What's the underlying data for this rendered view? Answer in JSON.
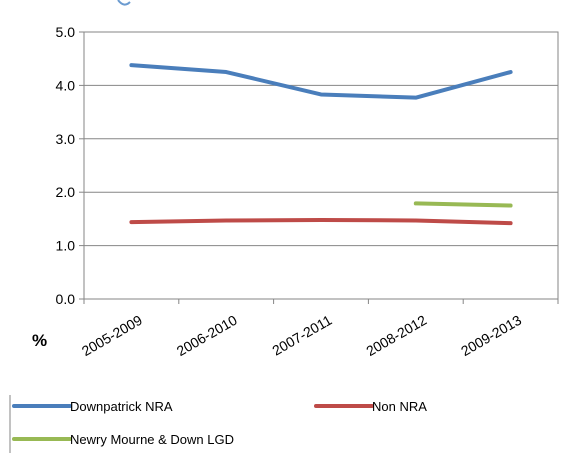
{
  "chart_data": {
    "type": "line",
    "categories": [
      "2005-2009",
      "2006-2010",
      "2007-2011",
      "2008-2012",
      "2009-2013"
    ],
    "y_unit_label": "%",
    "ylim": [
      0,
      5
    ],
    "y_ticks": [
      "0.0",
      "1.0",
      "2.0",
      "3.0",
      "4.0",
      "5.0"
    ],
    "grid": "horizontal",
    "legend_position": "bottom",
    "series": [
      {
        "name": "Downpatrick NRA",
        "color": "#4a7ebb",
        "values": [
          4.38,
          4.25,
          3.83,
          3.77,
          4.25
        ]
      },
      {
        "name": "Non NRA",
        "color": "#be4b48",
        "values": [
          1.44,
          1.47,
          1.48,
          1.47,
          1.42
        ]
      },
      {
        "name": "Newry Mourne & Down LGD",
        "color": "#98b954",
        "values": [
          null,
          null,
          null,
          1.79,
          1.75
        ]
      }
    ]
  }
}
